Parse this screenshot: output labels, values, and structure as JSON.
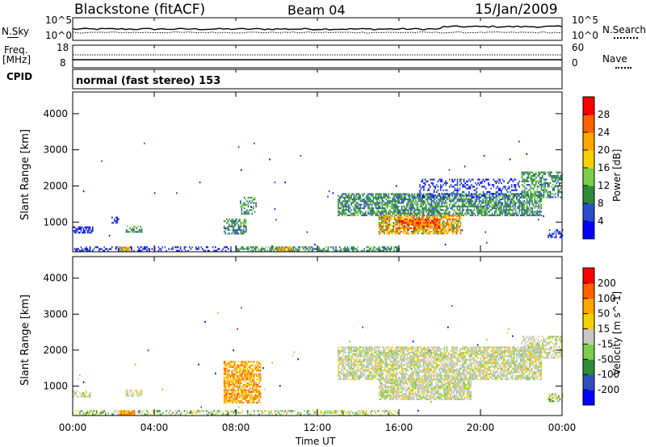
{
  "header": {
    "station": "Blackstone (fitACF)",
    "beam": "Beam 04",
    "date": "15/Jan/2009"
  },
  "noise_panel": {
    "left_label": "N.Sky",
    "left_ticks": [
      "10^5",
      "10^0"
    ],
    "right_label": "N.Search",
    "right_ticks": [
      "10^5",
      "10^0"
    ]
  },
  "freq_panel": {
    "left_label_top": "Freq.",
    "left_label_bottom": "[MHz]",
    "left_ticks": [
      "18",
      "8"
    ],
    "right_label": "Nave",
    "right_ticks": [
      "60",
      "0"
    ]
  },
  "cpid_panel": {
    "label": "CPID",
    "text": "normal (fast stereo) 153"
  },
  "x_axis": {
    "label": "Time UT",
    "ticks": [
      "00:00",
      "04:00",
      "08:00",
      "12:00",
      "16:00",
      "20:00",
      "00:00"
    ]
  },
  "chart_data": [
    {
      "type": "heatmap",
      "title": "",
      "xlabel": "Time UT",
      "ylabel": "Slant Range [km]",
      "xlim": [
        0,
        24
      ],
      "ylim": [
        180,
        4600
      ],
      "y_ticks": [
        "1000",
        "2000",
        "3000",
        "4000"
      ],
      "colorbar": {
        "label": "Power [dB]",
        "ticks": [
          "4",
          "8",
          "12",
          "16",
          "20",
          "24",
          "28"
        ],
        "colors": [
          "#0000ff",
          "#2a4ec8",
          "#2e8b3a",
          "#7ccd4a",
          "#f5d000",
          "#ffa500",
          "#ff6000",
          "#ff0000"
        ]
      },
      "regions": [
        {
          "t0": 0.0,
          "t1": 24.0,
          "r0": 200,
          "r1": 3300,
          "type": "scatter",
          "density": 0.0016,
          "level": "low"
        },
        {
          "t0": 0.0,
          "t1": 8.0,
          "r0": 200,
          "r1": 330,
          "type": "dense",
          "density": 0.35,
          "level": "low"
        },
        {
          "t0": 8.0,
          "t1": 16.0,
          "r0": 200,
          "r1": 330,
          "type": "dense",
          "density": 0.55,
          "level": "mid"
        },
        {
          "t0": 2.3,
          "t1": 2.8,
          "r0": 220,
          "r1": 320,
          "type": "dense",
          "density": 0.9,
          "level": "high"
        },
        {
          "t0": 10.0,
          "t1": 10.7,
          "r0": 220,
          "r1": 320,
          "type": "dense",
          "density": 0.9,
          "level": "high"
        },
        {
          "t0": 0.0,
          "t1": 1.0,
          "r0": 700,
          "r1": 880,
          "type": "dense",
          "density": 0.6,
          "level": "low"
        },
        {
          "t0": 2.6,
          "t1": 3.4,
          "r0": 730,
          "r1": 900,
          "type": "dense",
          "density": 0.7,
          "level": "mid"
        },
        {
          "t0": 1.9,
          "t1": 2.3,
          "r0": 1000,
          "r1": 1150,
          "type": "dense",
          "density": 0.4,
          "level": "low"
        },
        {
          "t0": 7.4,
          "t1": 8.5,
          "r0": 700,
          "r1": 1100,
          "type": "dense",
          "density": 0.6,
          "level": "mid"
        },
        {
          "t0": 8.2,
          "t1": 9.0,
          "r0": 1250,
          "r1": 1700,
          "type": "dense",
          "density": 0.45,
          "level": "mid"
        },
        {
          "t0": 13.0,
          "t1": 23.0,
          "r0": 1200,
          "r1": 1800,
          "type": "dense",
          "density": 0.7,
          "level": "mid"
        },
        {
          "t0": 15.0,
          "t1": 19.0,
          "r0": 700,
          "r1": 1200,
          "type": "dense",
          "density": 0.75,
          "level": "high"
        },
        {
          "t0": 16.0,
          "t1": 18.0,
          "r0": 850,
          "r1": 1100,
          "type": "dense",
          "density": 0.8,
          "level": "peak"
        },
        {
          "t0": 17.0,
          "t1": 22.0,
          "r0": 1700,
          "r1": 2200,
          "type": "dense",
          "density": 0.3,
          "level": "low"
        },
        {
          "t0": 22.0,
          "t1": 24.0,
          "r0": 1700,
          "r1": 2400,
          "type": "dense",
          "density": 0.55,
          "level": "mid"
        },
        {
          "t0": 23.3,
          "t1": 24.0,
          "r0": 600,
          "r1": 800,
          "type": "dense",
          "density": 0.5,
          "level": "low"
        }
      ]
    },
    {
      "type": "heatmap",
      "title": "",
      "xlabel": "Time UT",
      "ylabel": "Slant Range [km]",
      "xlim": [
        0,
        24
      ],
      "ylim": [
        180,
        4600
      ],
      "y_ticks": [
        "1000",
        "2000",
        "3000",
        "4000"
      ],
      "colorbar": {
        "label": "Velocity [m s^-1]",
        "ticks": [
          "200",
          "100",
          "50",
          "15",
          "-15",
          "-50",
          "-100",
          "-200"
        ],
        "colors": [
          "#0000ff",
          "#3050c0",
          "#2e8b3a",
          "#7ccd4a",
          "#c8c8c0",
          "#f5d000",
          "#ffa500",
          "#ff6000",
          "#ff0000"
        ]
      },
      "regions": [
        {
          "t0": 0.0,
          "t1": 24.0,
          "r0": 200,
          "r1": 3300,
          "type": "scatter",
          "density": 0.0016,
          "level": "mixed"
        },
        {
          "t0": 0.0,
          "t1": 16.0,
          "r0": 200,
          "r1": 330,
          "type": "dense",
          "density": 0.4,
          "level": "green"
        },
        {
          "t0": 2.3,
          "t1": 3.0,
          "r0": 200,
          "r1": 330,
          "type": "dense",
          "density": 0.8,
          "level": "orange"
        },
        {
          "t0": 0.0,
          "t1": 1.0,
          "r0": 700,
          "r1": 880,
          "type": "dense",
          "density": 0.5,
          "level": "grey"
        },
        {
          "t0": 2.6,
          "t1": 3.4,
          "r0": 730,
          "r1": 900,
          "type": "dense",
          "density": 0.6,
          "level": "grey"
        },
        {
          "t0": 7.4,
          "t1": 9.2,
          "r0": 550,
          "r1": 1700,
          "type": "dense",
          "density": 0.7,
          "level": "orange"
        },
        {
          "t0": 13.0,
          "t1": 23.0,
          "r0": 1200,
          "r1": 2100,
          "type": "dense",
          "density": 0.75,
          "level": "grey"
        },
        {
          "t0": 15.0,
          "t1": 19.5,
          "r0": 650,
          "r1": 1200,
          "type": "dense",
          "density": 0.8,
          "level": "grey"
        },
        {
          "t0": 22.0,
          "t1": 24.0,
          "r0": 1800,
          "r1": 2400,
          "type": "dense",
          "density": 0.55,
          "level": "grey"
        },
        {
          "t0": 23.3,
          "t1": 24.0,
          "r0": 600,
          "r1": 800,
          "type": "dense",
          "density": 0.5,
          "level": "green"
        }
      ]
    }
  ]
}
